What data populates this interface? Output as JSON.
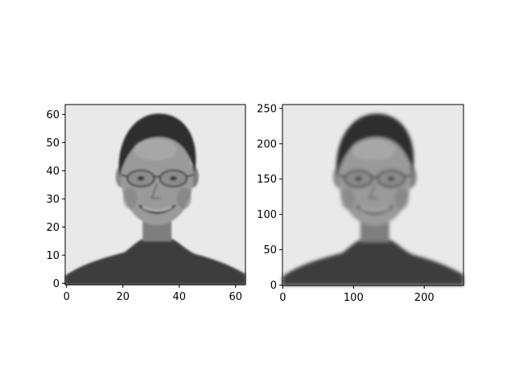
{
  "chart_data": [
    {
      "type": "heatmap",
      "colormap": "gray",
      "image_size": [
        64,
        64
      ],
      "xlim": [
        -0.5,
        63.5
      ],
      "ylim": [
        63.5,
        -0.5
      ],
      "xticks": [
        0,
        20,
        40,
        60
      ],
      "xtick_labels": [
        "0",
        "20",
        "40",
        "60"
      ],
      "yticks": [
        0,
        10,
        20,
        30,
        40,
        50,
        60
      ],
      "ytick_labels": [
        "0",
        "10",
        "20",
        "30",
        "40",
        "50",
        "60"
      ],
      "subject": "grayscale face portrait (man with glasses, dark turtleneck), low resolution"
    },
    {
      "type": "heatmap",
      "colormap": "gray",
      "image_size": [
        256,
        256
      ],
      "xlim": [
        -0.5,
        255.5
      ],
      "ylim": [
        255.5,
        -0.5
      ],
      "xticks": [
        0,
        100,
        200
      ],
      "xtick_labels": [
        "0",
        "100",
        "200"
      ],
      "yticks": [
        0,
        50,
        100,
        150,
        200,
        250
      ],
      "ytick_labels": [
        "0",
        "50",
        "100",
        "150",
        "200",
        "250"
      ],
      "subject": "grayscale face portrait (man with glasses, dark turtleneck), upsampled"
    }
  ]
}
